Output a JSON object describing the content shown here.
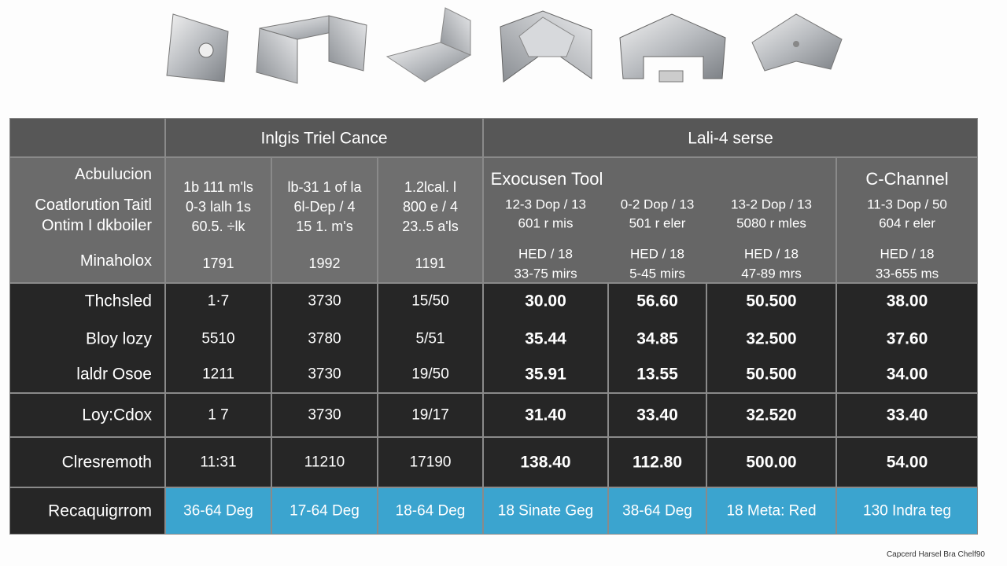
{
  "header": {
    "groups": [
      "Inlgis Triel Cance",
      "Lali-4 serse"
    ]
  },
  "spec": {
    "labels": [
      "Acbulucion",
      "Coatlorution Taitl",
      "Ontim I dkboiler",
      "Minaholox"
    ],
    "group1": [
      {
        "lines": [
          "1b 111 m'ls",
          "0-3 lalh 1s",
          "60.5. ÷lk"
        ],
        "year": "1791"
      },
      {
        "lines": [
          "lb-31 1 of la",
          "6l-Dep / 4",
          "15 1. m's"
        ],
        "year": "1992"
      },
      {
        "lines": [
          "1.2lcal. l",
          "800 e / 4",
          "23..5 a'ls"
        ],
        "year": "1191"
      }
    ],
    "group2_titles": [
      "Exocusen Tool",
      "C-Channel"
    ],
    "group2": [
      {
        "lines": [
          "12-3 Dop / 13",
          "601 r mis",
          "HED / 18",
          "33-75 mirs"
        ]
      },
      {
        "lines": [
          "0-2 Dop / 13",
          "501 r eler",
          "HED / 18",
          "5-45 mirs"
        ]
      },
      {
        "lines": [
          "13-2 Dop / 13",
          "5080 r mles",
          "HED / 18",
          "47-89 mrs"
        ]
      },
      {
        "lines": [
          "11-3 Dop / 50",
          "604 r eler",
          "HED / 18",
          "33-655 ms"
        ]
      }
    ]
  },
  "table": {
    "rows": [
      [
        "Thchsled",
        "1·7",
        "3730",
        "15/50",
        "30.00",
        "56.60",
        "50.500",
        "38.00"
      ],
      [
        "Bloy lozy",
        "5510",
        "3780",
        "5/51",
        "35.44",
        "34.85",
        "32.500",
        "37.60"
      ],
      [
        "laldr Osoe",
        "1211",
        "3730",
        "19/50",
        "35.91",
        "13.55",
        "50.500",
        "34.00"
      ],
      [
        "Loy:Cdox",
        "1 7",
        "3730",
        "19/17",
        "31.40",
        "33.40",
        "32.520",
        "33.40"
      ],
      [
        "Clresremoth",
        "11:31",
        "11210",
        "17190",
        "138.40",
        "112.80",
        "500.00",
        "54.00"
      ],
      [
        "Recaquigrrom",
        "36-64 Deg",
        "17-64 Deg",
        "18-64 Deg",
        "18 Sinate Geg",
        "38-64 Deg",
        "18 Meta: Red",
        "130 Indra teg"
      ]
    ]
  },
  "footer": "Capcerd Harsel Bra Chelf90"
}
